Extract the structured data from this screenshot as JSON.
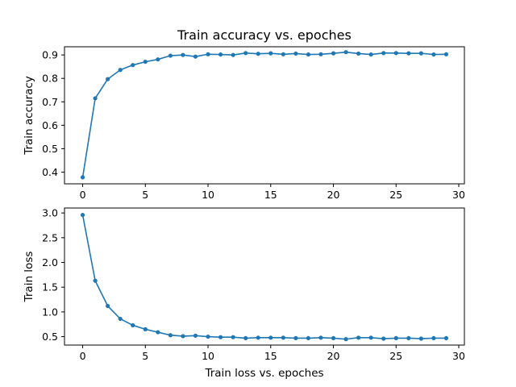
{
  "colors": {
    "series": "#1f77b4",
    "axes": "#000000",
    "background": "#ffffff"
  },
  "chart_data": [
    {
      "type": "line",
      "title": "Train accuracy vs. epoches",
      "xlabel": "",
      "ylabel": "Train accuracy",
      "xlim": [
        -1.45,
        30.45
      ],
      "ylim": [
        0.35,
        0.935
      ],
      "xticks": [
        0,
        5,
        10,
        15,
        20,
        25,
        30
      ],
      "yticks": [
        0.4,
        0.5,
        0.6,
        0.7,
        0.8,
        0.9
      ],
      "ytick_labels": [
        "0.4",
        "0.5",
        "0.6",
        "0.7",
        "0.8",
        "0.9"
      ],
      "grid": false,
      "marker": "circle",
      "x": [
        0,
        1,
        2,
        3,
        4,
        5,
        6,
        7,
        8,
        9,
        10,
        11,
        12,
        13,
        14,
        15,
        16,
        17,
        18,
        19,
        20,
        21,
        22,
        23,
        24,
        25,
        26,
        27,
        28,
        29
      ],
      "series": [
        {
          "values": [
            0.378,
            0.715,
            0.797,
            0.836,
            0.857,
            0.871,
            0.881,
            0.897,
            0.9,
            0.893,
            0.903,
            0.902,
            0.9,
            0.908,
            0.905,
            0.907,
            0.903,
            0.906,
            0.902,
            0.903,
            0.907,
            0.912,
            0.906,
            0.902,
            0.908,
            0.908,
            0.907,
            0.907,
            0.902,
            0.903
          ]
        }
      ]
    },
    {
      "type": "line",
      "title": "",
      "xlabel": "Train loss vs. epoches",
      "ylabel": "Train loss",
      "xlim": [
        -1.45,
        30.45
      ],
      "ylim": [
        0.33,
        3.1
      ],
      "xticks": [
        0,
        5,
        10,
        15,
        20,
        25,
        30
      ],
      "yticks": [
        0.5,
        1.0,
        1.5,
        2.0,
        2.5,
        3.0
      ],
      "ytick_labels": [
        "0.5",
        "1.0",
        "1.5",
        "2.0",
        "2.5",
        "3.0"
      ],
      "grid": false,
      "marker": "circle",
      "x": [
        0,
        1,
        2,
        3,
        4,
        5,
        6,
        7,
        8,
        9,
        10,
        11,
        12,
        13,
        14,
        15,
        16,
        17,
        18,
        19,
        20,
        21,
        22,
        23,
        24,
        25,
        26,
        27,
        28,
        29
      ],
      "series": [
        {
          "values": [
            2.96,
            1.63,
            1.12,
            0.86,
            0.73,
            0.65,
            0.59,
            0.53,
            0.51,
            0.52,
            0.5,
            0.49,
            0.49,
            0.47,
            0.48,
            0.48,
            0.48,
            0.47,
            0.47,
            0.48,
            0.47,
            0.45,
            0.48,
            0.48,
            0.46,
            0.47,
            0.47,
            0.46,
            0.47,
            0.47
          ]
        }
      ]
    }
  ]
}
